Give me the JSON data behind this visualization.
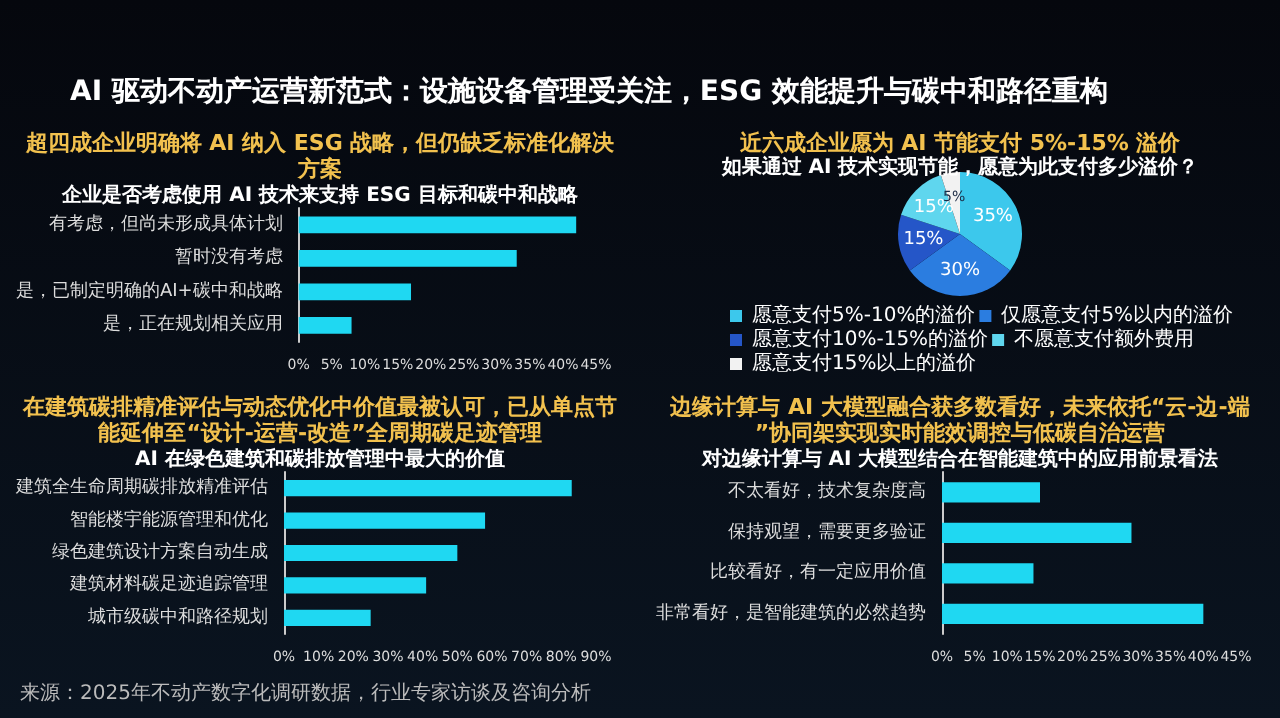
{
  "chart_data": [
    {
      "type": "other",
      "title": "AI 驱动不动产运营新范式：设施设备管理受关注，ESG 效能提升与碳中和路径重构",
      "annotations": [
        "来源：2025年不动产数字化调研数据，行业专家访谈及咨询分析"
      ]
    },
    {
      "type": "bar",
      "orientation": "horizontal",
      "title": "超四成企业明确将 AI 纳入 ESG 战略，但仍缺乏标准化解决方案",
      "subtitle": "企业是否考虑使用 AI 技术来支持 ESG 目标和碳中和战略",
      "categories": [
        "有考虑，但尚未形成具体计划",
        "暂时没有考虑",
        "是，已制定明确的AI+碳中和战略",
        "是，正在规划相关应用"
      ],
      "values": [
        42,
        33,
        17,
        8
      ],
      "color": "#1fd8f2",
      "xlim": [
        0,
        45
      ],
      "xticks": [
        {
          "value": 0,
          "label": "0%"
        },
        {
          "value": 5,
          "label": "5%"
        },
        {
          "value": 10,
          "label": "10%"
        },
        {
          "value": 15,
          "label": "15%"
        },
        {
          "value": 20,
          "label": "20%"
        },
        {
          "value": 25,
          "label": "25%"
        },
        {
          "value": 30,
          "label": "30%"
        },
        {
          "value": 35,
          "label": "35%"
        },
        {
          "value": 40,
          "label": "40%"
        },
        {
          "value": 45,
          "label": "45%"
        }
      ]
    },
    {
      "type": "pie",
      "title": "近六成企业愿为 AI 节能支付 5%-15% 溢价",
      "subtitle": "如果通过 AI 技术实现节能，愿意为此支付多少溢价？",
      "categories": [
        "愿意支付5%-10%的溢价",
        "仅愿意支付5%以内的溢价",
        "愿意支付10%-15%的溢价",
        "不愿意支付额外费用",
        "愿意支付15%以上的溢价"
      ],
      "values": [
        35,
        30,
        15,
        15,
        5
      ],
      "colors": [
        "#3cc8ec",
        "#2b7de0",
        "#2556c8",
        "#5fd6ee",
        "#f2f2f2"
      ],
      "value_labels": [
        "35%",
        "30%",
        "15%",
        "15%",
        "5%"
      ],
      "legend": "bottom"
    },
    {
      "type": "bar",
      "orientation": "horizontal",
      "title": "在建筑碳排精准评估与动态优化中价值最被认可，已从单点节能延伸至“设计-运营-改造”全周期碳足迹管理",
      "subtitle": "AI 在绿色建筑和碳排放管理中最大的价值",
      "categories": [
        "建筑全生命周期碳排放精准评估",
        "智能楼宇能源管理和优化",
        "绿色建筑设计方案自动生成",
        "建筑材料碳足迹追踪管理",
        "城市级碳中和路径规划"
      ],
      "values": [
        83,
        58,
        50,
        41,
        25
      ],
      "color": "#1fd8f2",
      "xlim": [
        0,
        90
      ],
      "xticks": [
        {
          "value": 0,
          "label": "0%"
        },
        {
          "value": 10,
          "label": "10%"
        },
        {
          "value": 20,
          "label": "20%"
        },
        {
          "value": 30,
          "label": "30%"
        },
        {
          "value": 40,
          "label": "40%"
        },
        {
          "value": 50,
          "label": "50%"
        },
        {
          "value": 60,
          "label": "60%"
        },
        {
          "value": 70,
          "label": "70%"
        },
        {
          "value": 80,
          "label": "80%"
        },
        {
          "value": 90,
          "label": "90%"
        }
      ]
    },
    {
      "type": "bar",
      "orientation": "horizontal",
      "title": "边缘计算与 AI 大模型融合获多数看好，未来依托“云-边-端”协同架实现实时能效调控与低碳自治运营",
      "subtitle": "对边缘计算与 AI 大模型结合在智能建筑中的应用前景看法",
      "categories": [
        "不太看好，技术复杂度高",
        "保持观望，需要更多验证",
        "比较看好，有一定应用价值",
        "非常看好，是智能建筑的必然趋势"
      ],
      "values": [
        15,
        29,
        14,
        40
      ],
      "color": "#1fd8f2",
      "xlim": [
        0,
        45
      ],
      "xticks": [
        {
          "value": 0,
          "label": "0%"
        },
        {
          "value": 5,
          "label": "5%"
        },
        {
          "value": 10,
          "label": "10%"
        },
        {
          "value": 15,
          "label": "15%"
        },
        {
          "value": 20,
          "label": "20%"
        },
        {
          "value": 25,
          "label": "25%"
        },
        {
          "value": 30,
          "label": "30%"
        },
        {
          "value": 35,
          "label": "35%"
        },
        {
          "value": 40,
          "label": "40%"
        },
        {
          "value": 45,
          "label": "45%"
        }
      ]
    }
  ]
}
